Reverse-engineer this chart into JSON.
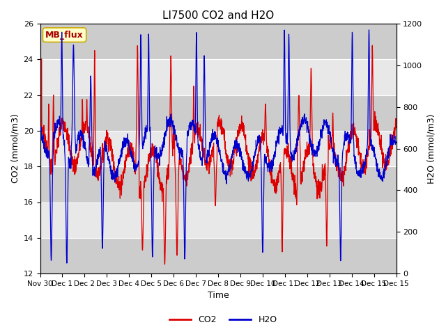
{
  "title": "LI7500 CO2 and H2O",
  "xlabel": "Time",
  "ylabel_left": "CO2 (mmol/m3)",
  "ylabel_right": "H2O (mmol/m3)",
  "ylim_left": [
    12,
    26
  ],
  "ylim_right": [
    0,
    1200
  ],
  "yticks_left": [
    12,
    14,
    16,
    18,
    20,
    22,
    24,
    26
  ],
  "yticks_right": [
    0,
    200,
    400,
    600,
    800,
    1000,
    1200
  ],
  "co2_color": "#dd0000",
  "h2o_color": "#0000cc",
  "background_color": "#ffffff",
  "plot_bg_color": "#e0e0e0",
  "hband_color": "#cccccc",
  "hband_alt_color": "#e8e8e8",
  "annotation_text": "MB_flux",
  "annotation_bg": "#ffffcc",
  "annotation_border": "#ccaa00",
  "annotation_text_color": "#aa0000",
  "legend_co2": "CO2",
  "legend_h2o": "H2O",
  "title_fontsize": 11,
  "axis_fontsize": 9,
  "tick_fontsize": 8,
  "legend_fontsize": 9,
  "n_points": 2000
}
